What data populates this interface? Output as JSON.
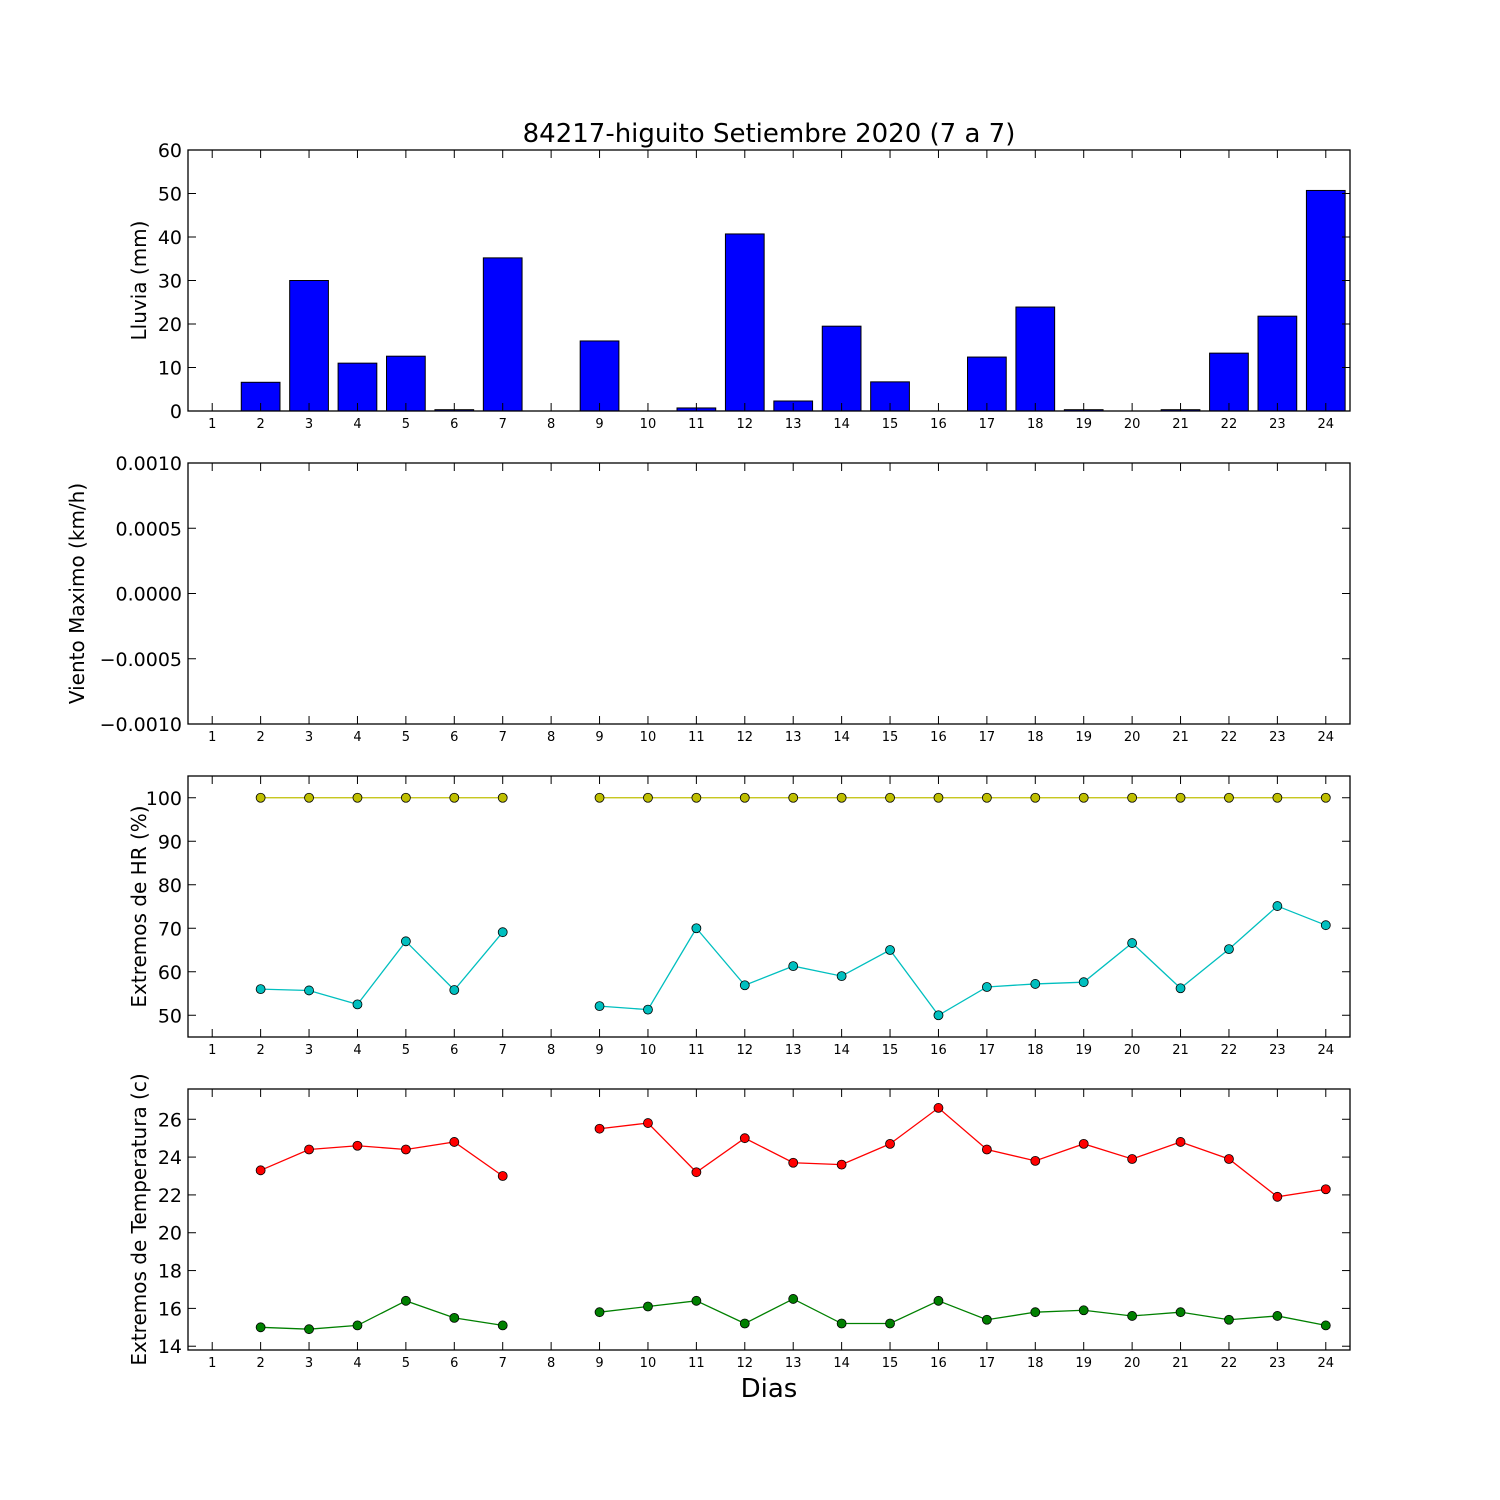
{
  "figure": {
    "title": "84217-higuito Setiembre 2020  (7 a 7)",
    "xlabel": "Dias"
  },
  "chart_data": [
    {
      "type": "bar",
      "ylabel": "Lluvia (mm)",
      "ylim": [
        0,
        60
      ],
      "yticks": [
        "0",
        "10",
        "20",
        "30",
        "40",
        "50",
        "60"
      ],
      "ytick_values": [
        0,
        10,
        20,
        30,
        40,
        50,
        60
      ],
      "x": [
        1,
        2,
        3,
        4,
        5,
        6,
        7,
        8,
        9,
        10,
        11,
        12,
        13,
        14,
        15,
        16,
        17,
        18,
        19,
        20,
        21,
        22,
        23,
        24
      ],
      "values": [
        0,
        6.6,
        30,
        11,
        12.6,
        0.3,
        35.2,
        0,
        16.1,
        0,
        0.7,
        40.7,
        2.3,
        19.5,
        6.7,
        0,
        12.4,
        23.9,
        0.3,
        0,
        0.3,
        13.3,
        21.8,
        50.7
      ],
      "bar_color": "#0000ff"
    },
    {
      "type": "line",
      "ylabel": "Viento Maximo (km/h)",
      "ylim": [
        -0.001,
        0.001
      ],
      "yticks": [
        "−0.0010",
        "−0.0005",
        "0.0000",
        "0.0005",
        "0.0010"
      ],
      "ytick_values": [
        -0.001,
        -0.0005,
        0,
        0.0005,
        0.001
      ],
      "series": []
    },
    {
      "type": "line",
      "ylabel": "Extremos de HR (%)",
      "ylim": [
        45,
        105
      ],
      "yticks": [
        "50",
        "60",
        "70",
        "80",
        "90",
        "100"
      ],
      "ytick_values": [
        50,
        60,
        70,
        80,
        90,
        100
      ],
      "x": [
        1,
        2,
        3,
        4,
        5,
        6,
        7,
        8,
        9,
        10,
        11,
        12,
        13,
        14,
        15,
        16,
        17,
        18,
        19,
        20,
        21,
        22,
        23,
        24
      ],
      "series": [
        {
          "color": "#bfbf00",
          "values": [
            null,
            100,
            100,
            100,
            100,
            100,
            100,
            null,
            100,
            100,
            100,
            100,
            100,
            100,
            100,
            100,
            100,
            100,
            100,
            100,
            100,
            100,
            100,
            100
          ]
        },
        {
          "color": "#00bfbf",
          "values": [
            null,
            56,
            55.7,
            52.5,
            67,
            55.8,
            69.1,
            null,
            52.1,
            51.3,
            70,
            56.9,
            61.3,
            59,
            65,
            50,
            56.5,
            57.2,
            57.6,
            66.6,
            56.2,
            65.2,
            75.1,
            70.7
          ]
        }
      ]
    },
    {
      "type": "line",
      "ylabel": "Extremos de Temperatura (c)",
      "ylim": [
        13.8,
        27.6
      ],
      "yticks": [
        "14",
        "16",
        "18",
        "20",
        "22",
        "24",
        "26"
      ],
      "ytick_values": [
        14,
        16,
        18,
        20,
        22,
        24,
        26
      ],
      "x": [
        1,
        2,
        3,
        4,
        5,
        6,
        7,
        8,
        9,
        10,
        11,
        12,
        13,
        14,
        15,
        16,
        17,
        18,
        19,
        20,
        21,
        22,
        23,
        24
      ],
      "series": [
        {
          "color": "#ff0000",
          "values": [
            null,
            23.3,
            24.4,
            24.6,
            24.4,
            24.8,
            23,
            null,
            25.5,
            25.8,
            23.2,
            25,
            23.7,
            23.6,
            24.7,
            26.6,
            24.4,
            23.8,
            24.7,
            23.9,
            24.8,
            23.9,
            21.9,
            22.3
          ]
        },
        {
          "color": "#008000",
          "values": [
            null,
            15,
            14.9,
            15.1,
            16.4,
            15.5,
            15.1,
            null,
            15.8,
            16.1,
            16.4,
            15.2,
            16.5,
            15.2,
            15.2,
            16.4,
            15.4,
            15.8,
            15.9,
            15.6,
            15.8,
            15.4,
            15.6,
            15.1
          ]
        }
      ]
    }
  ]
}
